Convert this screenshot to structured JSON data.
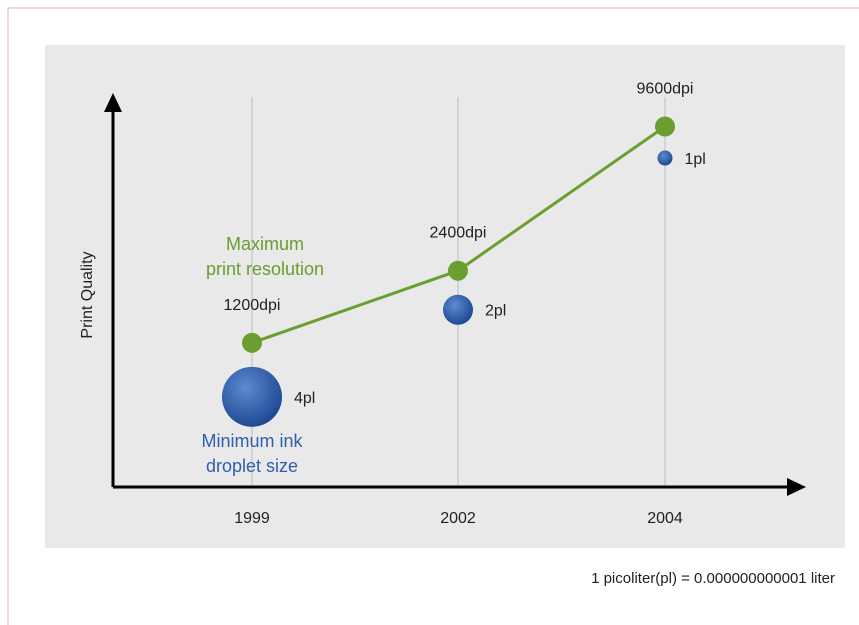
{
  "chart_data": {
    "type": "line",
    "categories": [
      "1999",
      "2002",
      "2004"
    ],
    "y_label": "Print Quality",
    "log_scale": true,
    "ylim": [
      300,
      13000
    ],
    "grid": true,
    "series": [
      {
        "label_lines": [
          "Maximum",
          "print resolution"
        ],
        "color": "#6a9e2f",
        "values": [
          1200,
          2400,
          9600
        ],
        "value_labels": [
          "1200dpi",
          "2400dpi",
          "9600dpi"
        ]
      },
      {
        "label_lines": [
          "Minimum ink",
          "droplet size"
        ],
        "color": "#2f5fae",
        "values": [
          4,
          2,
          1
        ],
        "value_labels": [
          "4pl",
          "2pl",
          "1pl"
        ]
      }
    ],
    "footnote": "1 picoliter(pl) = 0.000000000001 liter"
  }
}
